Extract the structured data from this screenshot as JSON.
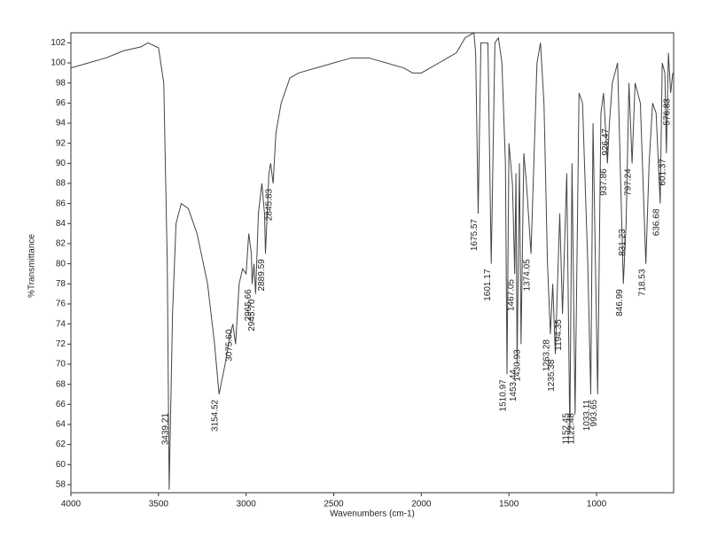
{
  "chart_data": {
    "type": "line",
    "x_label": "Wavenumbers (cm-1)",
    "y_label": "%Transmittance",
    "xlim": [
      4000,
      560
    ],
    "ylim": [
      57.2,
      103
    ],
    "xticks": [
      4000,
      3500,
      3000,
      2500,
      2000,
      1500,
      1000
    ],
    "yticks": [
      58,
      60,
      62,
      64,
      66,
      68,
      70,
      72,
      74,
      76,
      78,
      80,
      82,
      84,
      86,
      88,
      90,
      92,
      94,
      96,
      98,
      100,
      102
    ],
    "color": "#444444",
    "x": [
      4000,
      3900,
      3800,
      3700,
      3600,
      3560,
      3500,
      3470,
      3450,
      3439.21,
      3420,
      3400,
      3370,
      3330,
      3280,
      3220,
      3180,
      3154.52,
      3120,
      3090,
      3075.6,
      3060,
      3040,
      3020,
      3000,
      2985,
      2970,
      2965.66,
      2955,
      2945.7,
      2930,
      2910,
      2895,
      2889.59,
      2870,
      2860,
      2845.83,
      2830,
      2800,
      2750,
      2700,
      2600,
      2500,
      2400,
      2300,
      2200,
      2100,
      2050,
      2000,
      1950,
      1900,
      1850,
      1800,
      1750,
      1700,
      1690,
      1675.57,
      1660,
      1620,
      1601.17,
      1580,
      1560,
      1540,
      1520,
      1510.97,
      1500,
      1480,
      1467.05,
      1460,
      1453.44,
      1440,
      1430.93,
      1415,
      1400,
      1374.05,
      1340,
      1320,
      1300,
      1280,
      1263.28,
      1250,
      1235.38,
      1210,
      1194.35,
      1170,
      1152.45,
      1140,
      1122.48,
      1100,
      1080,
      1050,
      1033.11,
      1020,
      993.65,
      975,
      960,
      937.86,
      926.47,
      910,
      880,
      846.99,
      831.23,
      815,
      797.24,
      780,
      750,
      718.53,
      700,
      680,
      660,
      636.68,
      625,
      610,
      601.37,
      590,
      576.83,
      565
    ],
    "values": [
      99.5,
      100,
      100.5,
      101.2,
      101.6,
      102,
      101.5,
      98,
      80,
      57.5,
      75,
      84,
      86,
      85.5,
      83,
      78,
      72,
      67,
      70,
      73,
      74,
      72,
      78,
      79.5,
      79,
      83,
      81,
      78,
      80,
      77,
      85,
      88,
      85,
      81,
      89,
      90,
      88,
      93,
      96,
      98.5,
      99,
      99.5,
      100,
      100.5,
      100.5,
      100,
      99.5,
      99,
      99,
      99.5,
      100,
      100.5,
      101,
      102.5,
      103,
      101,
      85,
      102,
      102,
      80,
      102,
      102.5,
      100,
      90,
      69,
      92,
      88,
      79,
      89,
      70,
      90,
      72,
      91,
      88,
      81,
      100,
      102,
      96,
      80,
      73,
      78,
      71,
      85,
      75,
      89,
      63,
      90,
      65,
      97,
      96,
      80,
      67,
      94,
      67,
      95,
      97,
      90,
      94,
      98,
      100,
      78,
      84,
      98,
      90,
      98,
      96,
      80,
      90,
      96,
      95,
      86,
      100,
      99,
      91,
      101,
      97,
      99
    ],
    "peak_labels": [
      {
        "value": 3439.21,
        "label": "3439.21"
      },
      {
        "value": 3154.52,
        "label": "3154.52"
      },
      {
        "value": 3075.6,
        "label": "3075.60"
      },
      {
        "value": 2965.66,
        "label": "2965.66"
      },
      {
        "value": 2945.7,
        "label": "2945.70"
      },
      {
        "value": 2889.59,
        "label": "2889.59"
      },
      {
        "value": 2845.83,
        "label": "2845.83"
      },
      {
        "value": 1675.57,
        "label": "1675.57"
      },
      {
        "value": 1601.17,
        "label": "1601.17"
      },
      {
        "value": 1510.97,
        "label": "1510.97"
      },
      {
        "value": 1467.05,
        "label": "1467.05"
      },
      {
        "value": 1453.44,
        "label": "1453.44"
      },
      {
        "value": 1430.93,
        "label": "1430.93"
      },
      {
        "value": 1374.05,
        "label": "1374.05"
      },
      {
        "value": 1263.28,
        "label": "1263.28"
      },
      {
        "value": 1235.38,
        "label": "1235.38"
      },
      {
        "value": 1194.35,
        "label": "1194.35"
      },
      {
        "value": 1152.45,
        "label": "1152.45"
      },
      {
        "value": 1122.48,
        "label": "1122.48"
      },
      {
        "value": 1033.11,
        "label": "1033.11"
      },
      {
        "value": 993.65,
        "label": "993.65"
      },
      {
        "value": 937.86,
        "label": "937.86"
      },
      {
        "value": 926.47,
        "label": "926.47"
      },
      {
        "value": 846.99,
        "label": "846.99"
      },
      {
        "value": 831.23,
        "label": "831.23"
      },
      {
        "value": 797.24,
        "label": "797.24"
      },
      {
        "value": 718.53,
        "label": "718.53"
      },
      {
        "value": 636.68,
        "label": "636.68"
      },
      {
        "value": 601.37,
        "label": "601.37"
      },
      {
        "value": 576.83,
        "label": "576.83"
      }
    ]
  }
}
